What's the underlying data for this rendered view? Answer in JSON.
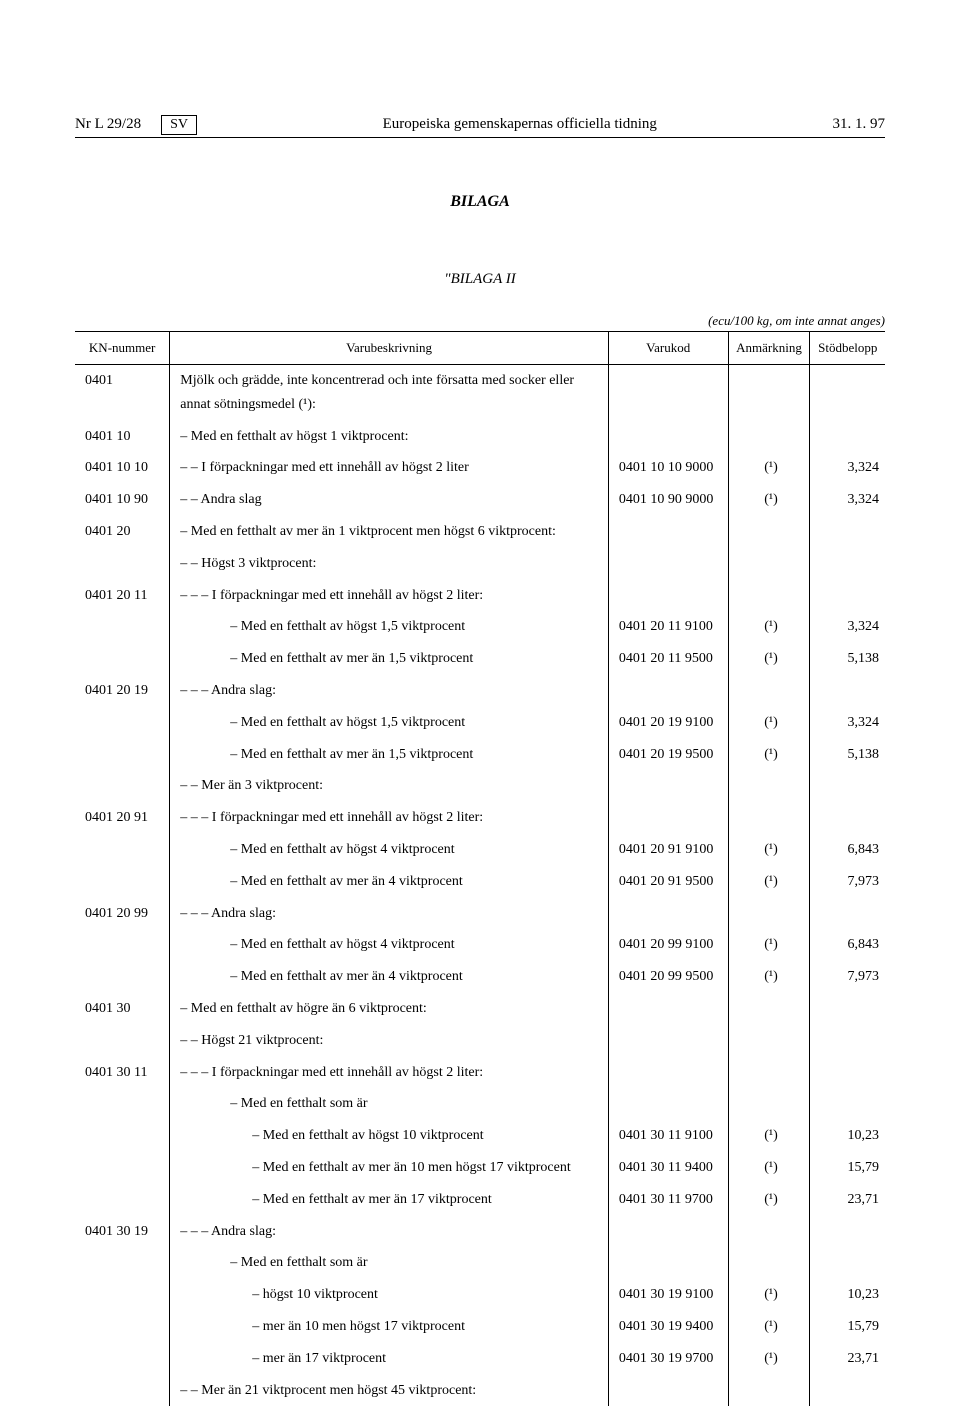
{
  "header": {
    "left": "Nr L 29/28",
    "sv": "SV",
    "center": "Europeiska gemenskapernas officiella tidning",
    "right": "31. 1. 97"
  },
  "titles": {
    "bilaga": "BILAGA",
    "bilaga2": "\"BILAGA II",
    "unit": "(ecu/100 kg, om inte annat anges)"
  },
  "columns": {
    "kn": "KN-nummer",
    "desc": "Varubeskrivning",
    "kod": "Varukod",
    "anm": "Anmärkning",
    "bel": "Stödbelopp"
  },
  "rows": [
    {
      "kn": "0401",
      "desc": "Mjölk och grädde, inte koncentrerad och inte försatta med socker eller annat sötningsmedel (¹):",
      "indent": 0
    },
    {
      "kn": "0401 10",
      "desc": "– Med en fetthalt av högst 1 viktprocent:",
      "indent": 0
    },
    {
      "kn": "0401 10 10",
      "desc": "– – I förpackningar med ett innehåll av högst 2 liter",
      "indent": 0,
      "kod": "0401 10 10 9000",
      "anm": "(¹)",
      "bel": "3,324"
    },
    {
      "kn": "0401 10 90",
      "desc": "– – Andra slag",
      "indent": 0,
      "kod": "0401 10 90 9000",
      "anm": "(¹)",
      "bel": "3,324"
    },
    {
      "kn": "0401 20",
      "desc": "– Med en fetthalt av mer än 1 viktprocent men högst 6 viktprocent:",
      "indent": 0
    },
    {
      "kn": "",
      "desc": "– – Högst 3 viktprocent:",
      "indent": 0
    },
    {
      "kn": "0401 20 11",
      "desc": "– – – I förpackningar med ett innehåll av högst 2 liter:",
      "indent": 0
    },
    {
      "kn": "",
      "desc": "– Med en fetthalt av högst 1,5 viktprocent",
      "indent": 3,
      "kod": "0401 20 11 9100",
      "anm": "(¹)",
      "bel": "3,324"
    },
    {
      "kn": "",
      "desc": "– Med en fetthalt av mer än 1,5 viktprocent",
      "indent": 3,
      "kod": "0401 20 11 9500",
      "anm": "(¹)",
      "bel": "5,138"
    },
    {
      "kn": "0401 20 19",
      "desc": "– – – Andra slag:",
      "indent": 0
    },
    {
      "kn": "",
      "desc": "– Med en fetthalt av högst 1,5 viktprocent",
      "indent": 3,
      "kod": "0401 20 19 9100",
      "anm": "(¹)",
      "bel": "3,324"
    },
    {
      "kn": "",
      "desc": "– Med en fetthalt av mer än 1,5 viktprocent",
      "indent": 3,
      "kod": "0401 20 19 9500",
      "anm": "(¹)",
      "bel": "5,138"
    },
    {
      "kn": "",
      "desc": "– – Mer än 3 viktprocent:",
      "indent": 0
    },
    {
      "kn": "0401 20 91",
      "desc": "– – – I förpackningar med ett innehåll av högst 2 liter:",
      "indent": 0
    },
    {
      "kn": "",
      "desc": "– Med en fetthalt av högst 4 viktprocent",
      "indent": 3,
      "kod": "0401 20 91 9100",
      "anm": "(¹)",
      "bel": "6,843"
    },
    {
      "kn": "",
      "desc": "– Med en fetthalt av mer än 4 viktprocent",
      "indent": 3,
      "kod": "0401 20 91 9500",
      "anm": "(¹)",
      "bel": "7,973"
    },
    {
      "kn": "0401 20 99",
      "desc": "– – – Andra slag:",
      "indent": 0
    },
    {
      "kn": "",
      "desc": "– Med en fetthalt av högst 4 viktprocent",
      "indent": 3,
      "kod": "0401 20 99 9100",
      "anm": "(¹)",
      "bel": "6,843"
    },
    {
      "kn": "",
      "desc": "– Med en fetthalt av mer än 4 viktprocent",
      "indent": 3,
      "kod": "0401 20 99 9500",
      "anm": "(¹)",
      "bel": "7,973"
    },
    {
      "kn": "0401 30",
      "desc": "– Med en fetthalt av högre än 6 viktprocent:",
      "indent": 0
    },
    {
      "kn": "",
      "desc": "– – Högst 21 viktprocent:",
      "indent": 0
    },
    {
      "kn": "0401 30 11",
      "desc": "– – – I förpackningar med ett innehåll av högst 2 liter:",
      "indent": 0
    },
    {
      "kn": "",
      "desc": "– Med en fetthalt som är",
      "indent": 3
    },
    {
      "kn": "",
      "desc": "– Med en fetthalt av högst 10 viktprocent",
      "indent": 4,
      "kod": "0401 30 11 9100",
      "anm": "(¹)",
      "bel": "10,23"
    },
    {
      "kn": "",
      "desc": "– Med en fetthalt av mer än 10 men högst 17 viktprocent",
      "indent": 4,
      "kod": "0401 30 11 9400",
      "anm": "(¹)",
      "bel": "15,79"
    },
    {
      "kn": "",
      "desc": "– Med en fetthalt av mer än 17 viktprocent",
      "indent": 4,
      "kod": "0401 30 11 9700",
      "anm": "(¹)",
      "bel": "23,71"
    },
    {
      "kn": "0401 30 19",
      "desc": "– – – Andra slag:",
      "indent": 0
    },
    {
      "kn": "",
      "desc": "– Med en fetthalt som är",
      "indent": 3
    },
    {
      "kn": "",
      "desc": "– högst 10 viktprocent",
      "indent": 4,
      "kod": "0401 30 19 9100",
      "anm": "(¹)",
      "bel": "10,23"
    },
    {
      "kn": "",
      "desc": "– mer än 10 men högst 17 viktprocent",
      "indent": 4,
      "kod": "0401 30 19 9400",
      "anm": "(¹)",
      "bel": "15,79"
    },
    {
      "kn": "",
      "desc": "– mer än 17 viktprocent",
      "indent": 4,
      "kod": "0401 30 19 9700",
      "anm": "(¹)",
      "bel": "23,71"
    },
    {
      "kn": "",
      "desc": "– – Mer än 21 viktprocent men högst 45 viktprocent:",
      "indent": 0
    }
  ]
}
